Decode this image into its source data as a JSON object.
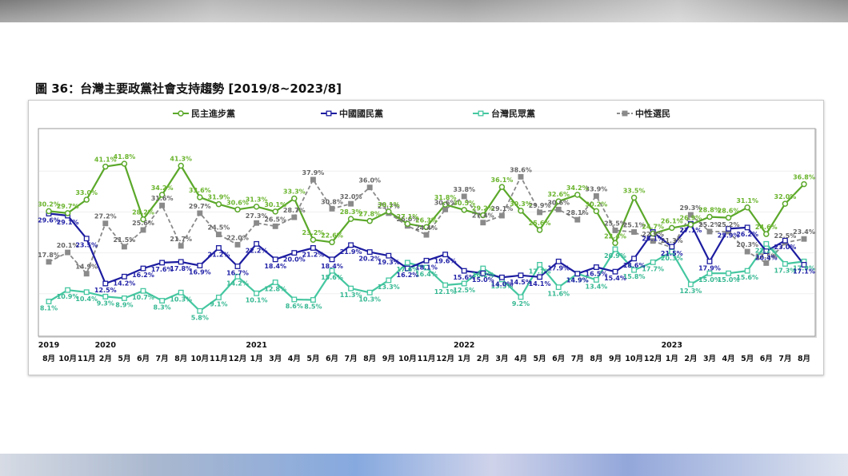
{
  "chart_data": {
    "type": "line",
    "title": "圖 36：台灣主要政黨社會支持趨勢 [2019/8~2023/8]",
    "xlabel": "",
    "ylabel": "",
    "ylim": [
      0,
      50
    ],
    "grid": true,
    "legend_position": "top",
    "categories": [
      "8月",
      "10月",
      "11月",
      "2月",
      "5月",
      "6月",
      "7月",
      "8月",
      "10月",
      "11月",
      "12月",
      "1月",
      "3月",
      "4月",
      "5月",
      "6月",
      "7月",
      "8月",
      "9月",
      "10月",
      "11月",
      "12月",
      "1月",
      "2月",
      "3月",
      "4月",
      "5月",
      "6月",
      "7月",
      "8月",
      "9月",
      "10月",
      "12月",
      "1月",
      "2月",
      "3月",
      "4月",
      "5月",
      "6月",
      "7月",
      "8月"
    ],
    "year_labels": [
      "2019",
      "",
      "",
      "2020",
      "",
      "",
      "",
      "",
      "",
      "",
      "",
      "2021",
      "",
      "",
      "",
      "",
      "",
      "",
      "",
      "",
      "",
      "",
      "2022",
      "",
      "",
      "",
      "",
      "",
      "",
      "",
      "",
      "",
      "",
      "2023",
      "",
      "",
      "",
      "",
      "",
      "",
      ""
    ],
    "value_suffix": "%",
    "series": [
      {
        "name": "民主進步黨",
        "color": "#5ba82a",
        "label_color": "#6ab42d",
        "marker": "circle",
        "line_style": "solid",
        "values": [
          30.2,
          29.7,
          33.0,
          41.1,
          41.8,
          28.2,
          34.2,
          41.3,
          33.6,
          31.9,
          30.6,
          31.3,
          30.1,
          33.3,
          23.2,
          22.6,
          28.3,
          27.8,
          30.1,
          27.1,
          26.3,
          31.8,
          30.5,
          29.2,
          36.1,
          30.3,
          25.6,
          32.6,
          34.2,
          30.2,
          22.4,
          33.5,
          24.7,
          26.1,
          26.9,
          28.8,
          28.6,
          31.1,
          24.6,
          32.0,
          36.8
        ]
      },
      {
        "name": "中國國民黨",
        "color": "#1c1ca0",
        "label_color": "#2323a8",
        "marker": "square",
        "line_style": "solid",
        "values": [
          29.6,
          29.1,
          23.5,
          12.5,
          14.2,
          16.2,
          17.6,
          17.8,
          16.9,
          21.2,
          16.7,
          22.2,
          18.4,
          20.0,
          21.2,
          18.4,
          21.9,
          20.2,
          19.3,
          16.2,
          18.1,
          19.6,
          15.6,
          15.0,
          14.0,
          14.5,
          14.1,
          17.9,
          14.9,
          16.5,
          15.4,
          18.6,
          25.1,
          21.5,
          27.1,
          17.9,
          25.9,
          26.2,
          20.4,
          23.0,
          17.1
        ]
      },
      {
        "name": "台灣民眾黨",
        "color": "#45c7a0",
        "label_color": "#36b892",
        "marker": "square",
        "line_style": "solid",
        "values": [
          8.1,
          10.9,
          10.4,
          9.3,
          8.9,
          10.7,
          8.3,
          10.3,
          5.8,
          9.1,
          14.2,
          10.1,
          12.8,
          8.6,
          8.5,
          15.6,
          11.3,
          10.3,
          13.3,
          17.6,
          16.4,
          12.1,
          12.5,
          16.2,
          13.5,
          9.2,
          17.1,
          11.6,
          14.9,
          13.4,
          20.9,
          15.8,
          17.7,
          20.3,
          12.3,
          15.0,
          15.0,
          15.6,
          22.2,
          17.3,
          17.9
        ]
      },
      {
        "name": "中性選民",
        "color": "#8a8a8a",
        "label_color": "#666666",
        "marker": "square-filled",
        "line_style": "dashed",
        "values": [
          17.8,
          20.1,
          14.9,
          27.2,
          21.5,
          25.6,
          31.6,
          21.7,
          29.7,
          24.5,
          22.0,
          27.3,
          26.5,
          28.7,
          37.9,
          30.8,
          32.0,
          36.0,
          29.7,
          26.6,
          24.4,
          30.6,
          33.8,
          27.4,
          29.1,
          38.6,
          29.9,
          30.6,
          28.1,
          33.9,
          25.5,
          25.1,
          22.9,
          21.3,
          29.3,
          25.2,
          25.2,
          20.3,
          17.5,
          22.5,
          23.4
        ]
      }
    ]
  }
}
